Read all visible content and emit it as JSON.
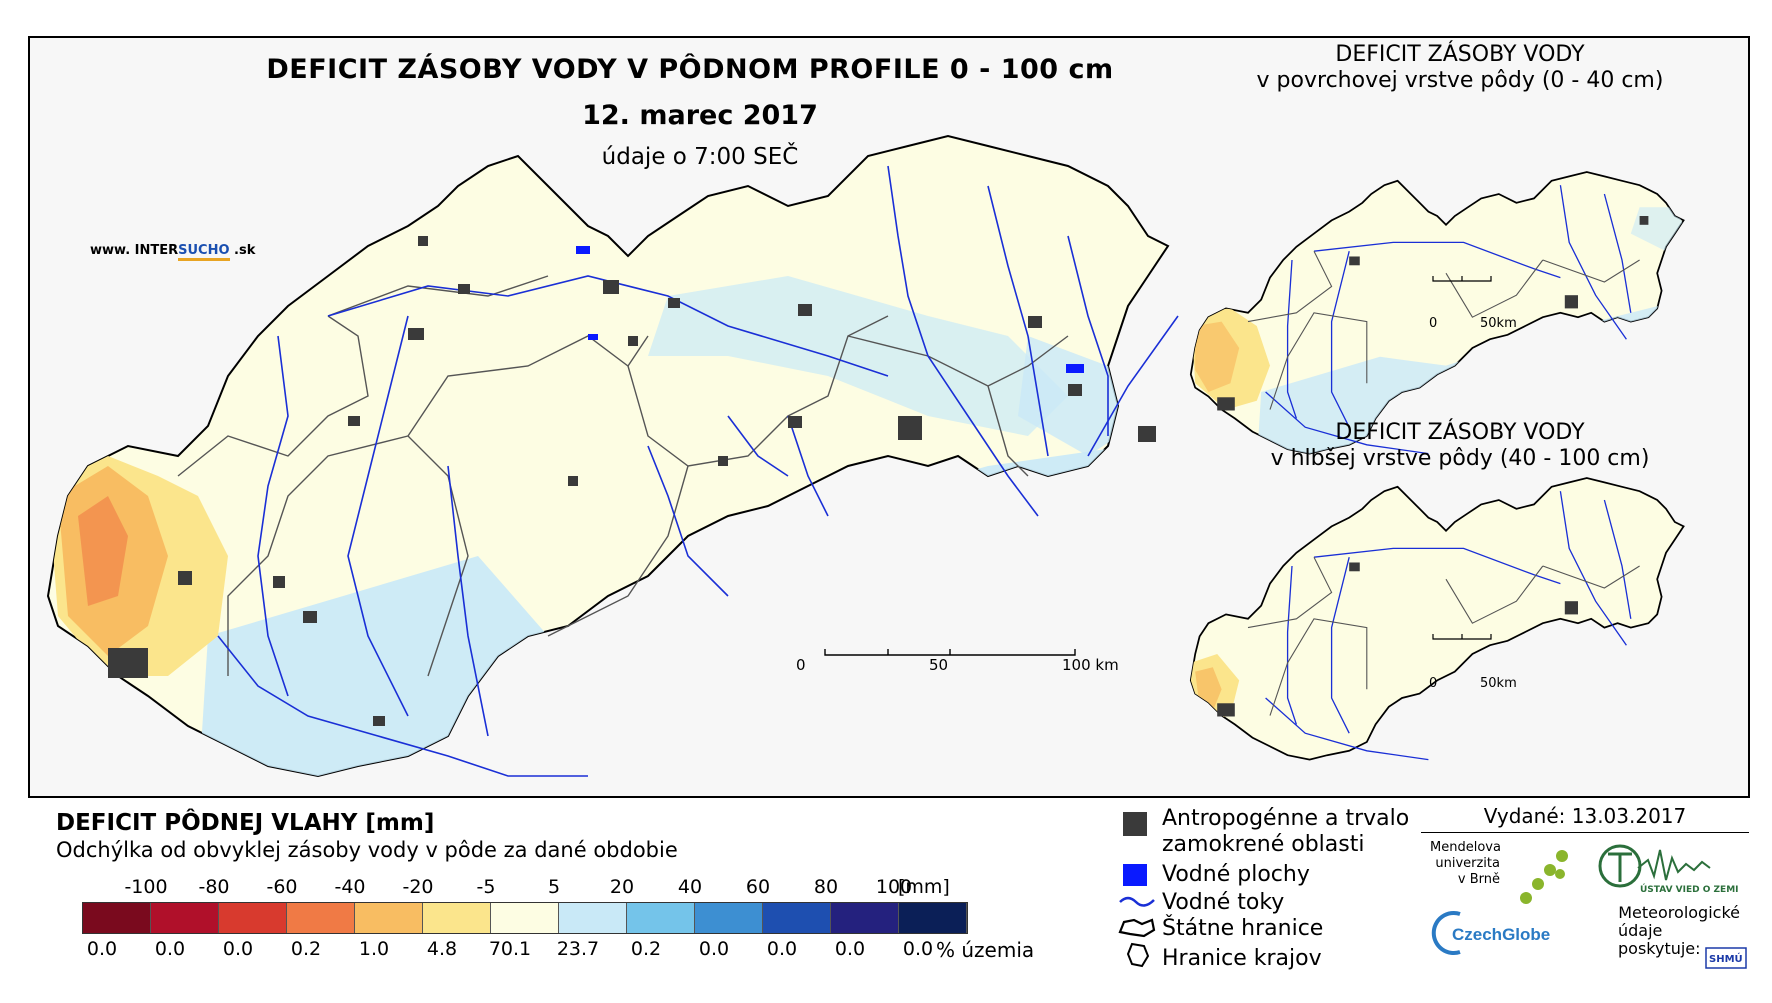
{
  "main_map": {
    "title": "DEFICIT ZÁSOBY VODY V PÔDNOM PROFILE 0 - 100 cm",
    "date": "12. marec 2017",
    "time_note": "údaje o 7:00 SEČ",
    "website": {
      "prefix": "www. INTER",
      "highlight": "SUCHO",
      "suffix": " .sk"
    },
    "scale": {
      "labels": [
        "0",
        "50",
        "100 km"
      ]
    }
  },
  "inset_top": {
    "title_line1": "DEFICIT ZÁSOBY VODY",
    "title_line2": "v povrchovej vrstve pôdy (0 - 40 cm)",
    "scale": {
      "labels": [
        "0",
        "50km"
      ]
    }
  },
  "inset_bottom": {
    "title_line1": "DEFICIT ZÁSOBY VODY",
    "title_line2": "v hlbšej vrstve pôdy (40 - 100 cm)",
    "scale": {
      "labels": [
        "0",
        "50km"
      ]
    }
  },
  "legend": {
    "title": "DEFICIT PÔDNEJ VLAHY [mm]",
    "subtitle": "Odchýlka od obvyklej zásoby vody v pôde za dané obdobie",
    "unit_mm": "[mm]",
    "unit_pct": "% územia",
    "break_labels": [
      "-100",
      "-80",
      "-60",
      "-40",
      "-20",
      "-5",
      "5",
      "20",
      "40",
      "60",
      "80",
      "100"
    ],
    "classes": [
      {
        "color": "#7a0a1e",
        "pct": "0.0"
      },
      {
        "color": "#b0102a",
        "pct": "0.0"
      },
      {
        "color": "#d83a2e",
        "pct": "0.0"
      },
      {
        "color": "#f07a45",
        "pct": "0.2"
      },
      {
        "color": "#f8bd62",
        "pct": "1.0"
      },
      {
        "color": "#fbe58c",
        "pct": "4.8"
      },
      {
        "color": "#fdfde3",
        "pct": "70.1"
      },
      {
        "color": "#c9e9f7",
        "pct": "23.7"
      },
      {
        "color": "#74c4ea",
        "pct": "0.2"
      },
      {
        "color": "#3d8fd2",
        "pct": "0.0"
      },
      {
        "color": "#1e4fb0",
        "pct": "0.0"
      },
      {
        "color": "#24217e",
        "pct": "0.0"
      },
      {
        "color": "#0b1f57",
        "pct": "0.0"
      }
    ]
  },
  "symbols": [
    {
      "icon": "dark-square-icon",
      "label": "Antropogénne a trvalo zamokrené oblasti"
    },
    {
      "icon": "blue-square-icon",
      "label": "Vodné plochy"
    },
    {
      "icon": "river-line-icon",
      "label": "Vodné toky"
    },
    {
      "icon": "state-border-icon",
      "label": "Štátne hranice"
    },
    {
      "icon": "region-border-icon",
      "label": "Hranice krajov"
    }
  ],
  "credits": {
    "issued": "Vydané: 13.03.2017",
    "mendel": [
      "Mendelova",
      "univerzita",
      "v Brně"
    ],
    "czechglobe": "CzechGlobe",
    "uvz": "ÚSTAV VIED O ZEMI",
    "meteo": [
      "Meteorologické",
      "údaje",
      "poskytuje:"
    ],
    "shmu": "SHMÚ"
  }
}
